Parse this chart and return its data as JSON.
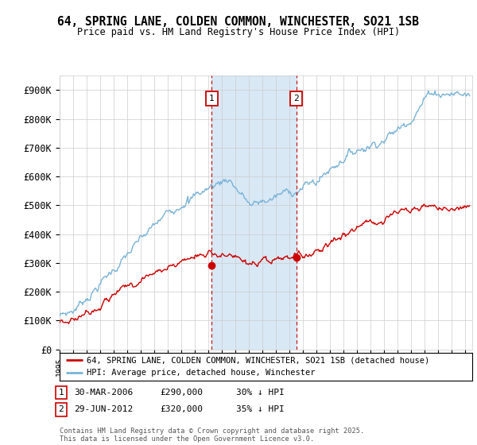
{
  "title_line1": "64, SPRING LANE, COLDEN COMMON, WINCHESTER, SO21 1SB",
  "title_line2": "Price paid vs. HM Land Registry's House Price Index (HPI)",
  "ylim": [
    0,
    950000
  ],
  "yticks": [
    0,
    100000,
    200000,
    300000,
    400000,
    500000,
    600000,
    700000,
    800000,
    900000
  ],
  "ytick_labels": [
    "£0",
    "£100K",
    "£200K",
    "£300K",
    "£400K",
    "£500K",
    "£600K",
    "£700K",
    "£800K",
    "£900K"
  ],
  "xlim_start": 1995.0,
  "xlim_end": 2025.5,
  "purchase1_x": 2006.24,
  "purchase1_y": 290000,
  "purchase1_label": "1",
  "purchase2_x": 2012.49,
  "purchase2_y": 320000,
  "purchase2_label": "2",
  "vline1_x": 2006.24,
  "vline2_x": 2012.49,
  "hpi_color": "#7ab3d8",
  "price_color": "#cc0000",
  "legend_line1": "64, SPRING LANE, COLDEN COMMON, WINCHESTER, SO21 1SB (detached house)",
  "legend_line2": "HPI: Average price, detached house, Winchester",
  "annotation1_date": "30-MAR-2006",
  "annotation1_price": "£290,000",
  "annotation1_hpi": "30% ↓ HPI",
  "annotation2_date": "29-JUN-2012",
  "annotation2_price": "£320,000",
  "annotation2_hpi": "35% ↓ HPI",
  "footnote": "Contains HM Land Registry data © Crown copyright and database right 2025.\nThis data is licensed under the Open Government Licence v3.0.",
  "highlight_color": "#d8e8f5",
  "background_color": "#ffffff",
  "grid_color": "#cccccc",
  "marker_edge_color": "#cc0000"
}
